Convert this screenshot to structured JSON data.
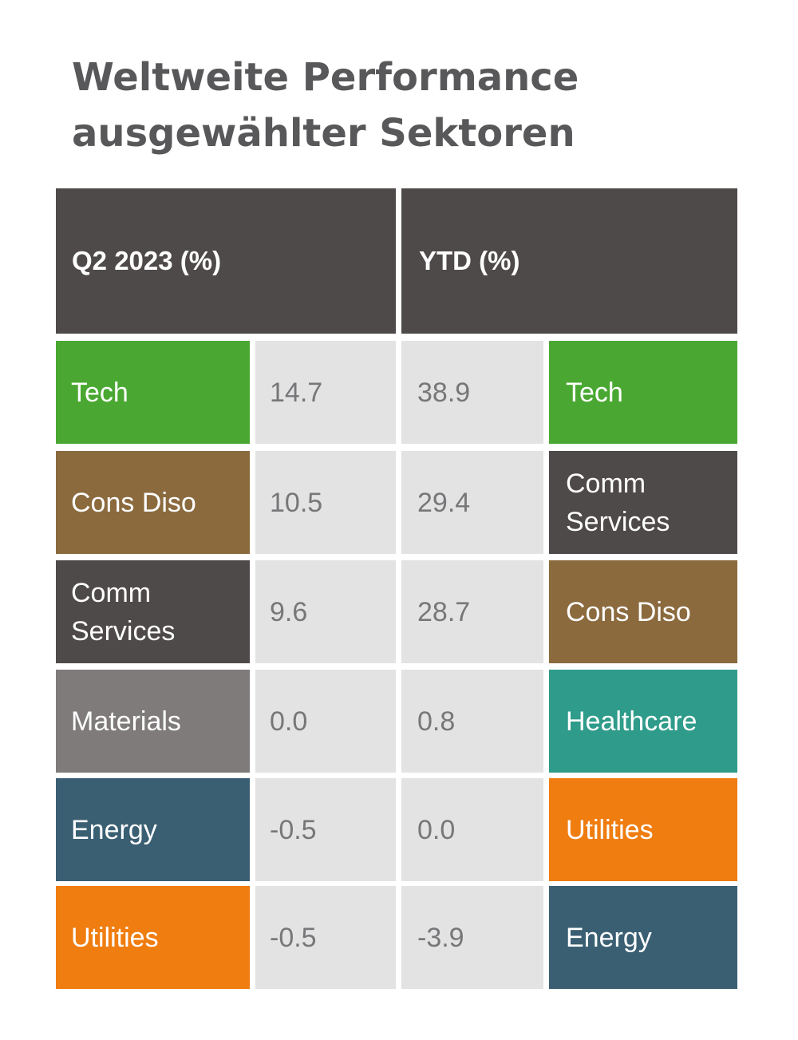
{
  "title": {
    "line1": "Weltweite Performance",
    "line2": "ausgewählter Sektoren"
  },
  "colors": {
    "Tech": "#4aa832",
    "Cons Diso": "#8b6a3e",
    "Comm Services": "#4f4a4a",
    "Materials": "#7f7b7b",
    "Energy": "#3a5f73",
    "Utilities": "#ef7d10",
    "Healthcare": "#2f9b8a",
    "header": "#4f4a4a",
    "value_bg": "#e3e3e3"
  },
  "chart_data": {
    "type": "table",
    "columns": [
      {
        "header": "Q2 2023 (%)"
      },
      {
        "header": "YTD (%)"
      }
    ],
    "q2_2023": [
      {
        "sector": "Tech",
        "value": "14.7"
      },
      {
        "sector": "Cons Diso",
        "value": "10.5"
      },
      {
        "sector": "Comm Services",
        "value": "9.6"
      },
      {
        "sector": "Materials",
        "value": "0.0"
      },
      {
        "sector": "Energy",
        "value": "-0.5"
      },
      {
        "sector": "Utilities",
        "value": "-0.5"
      }
    ],
    "ytd": [
      {
        "sector": "Tech",
        "value": "38.9"
      },
      {
        "sector": "Comm Services",
        "value": "29.4"
      },
      {
        "sector": "Cons Diso",
        "value": "28.7"
      },
      {
        "sector": "Healthcare",
        "value": "0.8"
      },
      {
        "sector": "Utilities",
        "value": "0.0"
      },
      {
        "sector": "Energy",
        "value": "-3.9"
      }
    ]
  }
}
